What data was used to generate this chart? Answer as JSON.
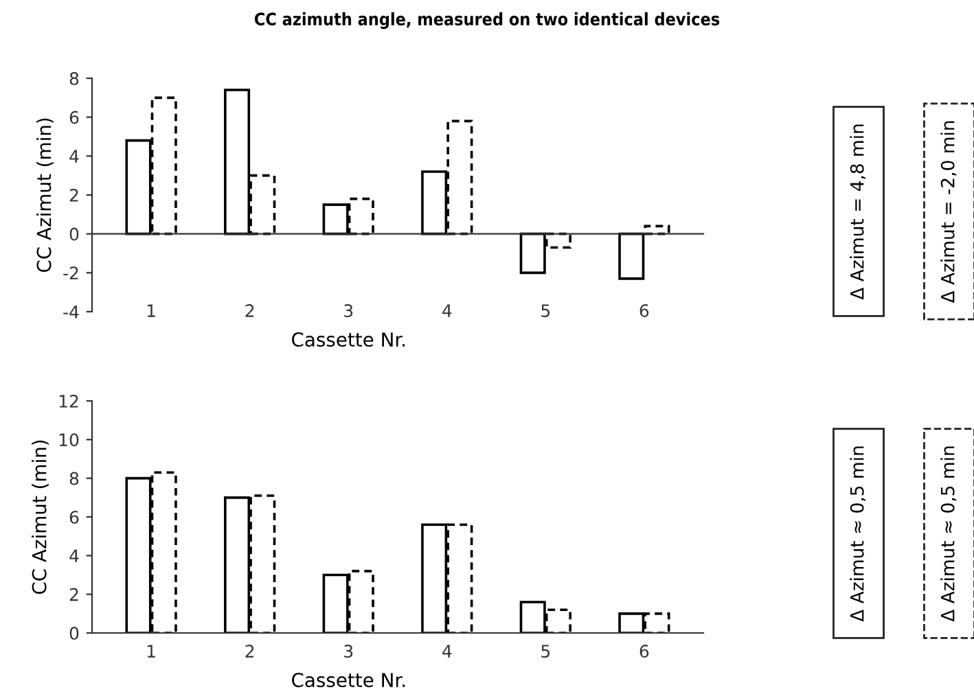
{
  "chart_data": [
    {
      "type": "bar",
      "title": "CC azimuth angle, measured on two identical devices",
      "xlabel": "Cassette Nr.",
      "ylabel": "CC Azimut (min)",
      "categories": [
        "1",
        "2",
        "3",
        "4",
        "5",
        "6"
      ],
      "series": [
        {
          "color": "#000000",
          "line_style": "solid",
          "values": [
            4.8,
            7.4,
            1.5,
            3.2,
            -2.0,
            -2.3
          ]
        },
        {
          "color": "#000000",
          "line_style": "dashed",
          "values": [
            7.0,
            3.0,
            1.8,
            5.8,
            -0.7,
            0.4
          ]
        }
      ],
      "ylim": [
        -4,
        8
      ],
      "yticks": [
        -4,
        -2,
        0,
        2,
        4,
        6,
        8
      ],
      "legend": false,
      "annotations": [
        "Δ Azimut = 4,8 min",
        "Δ Azimut = -2,0 min"
      ]
    },
    {
      "type": "bar",
      "xlabel": "Cassette Nr.",
      "ylabel": "CC Azimut (min)",
      "categories": [
        "1",
        "2",
        "3",
        "4",
        "5",
        "6"
      ],
      "series": [
        {
          "color": "#000000",
          "line_style": "solid",
          "values": [
            8.0,
            7.0,
            3.0,
            5.6,
            1.6,
            1.0
          ]
        },
        {
          "color": "#000000",
          "line_style": "dashed",
          "values": [
            8.3,
            7.1,
            3.2,
            5.6,
            1.2,
            1.0
          ]
        }
      ],
      "ylim": [
        0,
        12
      ],
      "yticks": [
        0,
        2,
        4,
        6,
        8,
        10,
        12
      ],
      "grid": false,
      "legend": false,
      "annotations": [
        "Δ Azimut ≈ 0,5 min",
        "Δ Azimut ≈ 0,5 min"
      ]
    }
  ]
}
